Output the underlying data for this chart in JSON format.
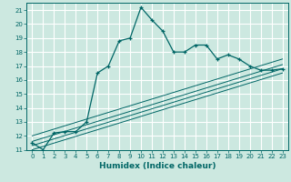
{
  "title": "",
  "xlabel": "Humidex (Indice chaleur)",
  "ylabel": "",
  "bg_color": "#cce8e0",
  "grid_color": "#ffffff",
  "line_color": "#006666",
  "xlim": [
    -0.5,
    23.5
  ],
  "ylim": [
    11,
    21.5
  ],
  "xticks": [
    0,
    1,
    2,
    3,
    4,
    5,
    6,
    7,
    8,
    9,
    10,
    11,
    12,
    13,
    14,
    15,
    16,
    17,
    18,
    19,
    20,
    21,
    22,
    23
  ],
  "yticks": [
    11,
    12,
    13,
    14,
    15,
    16,
    17,
    18,
    19,
    20,
    21
  ],
  "main_x": [
    0,
    1,
    2,
    3,
    4,
    5,
    6,
    7,
    8,
    9,
    10,
    11,
    12,
    13,
    14,
    15,
    16,
    17,
    18,
    19,
    20,
    21,
    22,
    23
  ],
  "main_y": [
    11.5,
    11.0,
    12.2,
    12.3,
    12.3,
    13.0,
    16.5,
    17.0,
    18.8,
    19.0,
    21.2,
    20.3,
    19.5,
    18.0,
    18.0,
    18.5,
    18.5,
    17.5,
    17.8,
    17.5,
    17.0,
    16.7,
    16.7,
    16.8
  ],
  "ref_lines": [
    {
      "x": [
        0,
        23
      ],
      "y": [
        11.0,
        16.5
      ]
    },
    {
      "x": [
        0,
        23
      ],
      "y": [
        11.3,
        16.8
      ]
    },
    {
      "x": [
        0,
        23
      ],
      "y": [
        11.6,
        17.1
      ]
    },
    {
      "x": [
        0,
        23
      ],
      "y": [
        12.0,
        17.5
      ]
    }
  ],
  "xlabel_fontsize": 6.5,
  "tick_fontsize": 5.0
}
